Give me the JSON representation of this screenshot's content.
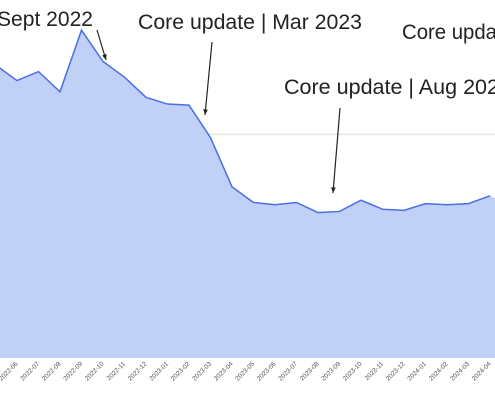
{
  "chart_data": {
    "type": "area",
    "categories": [
      null,
      "2022-06",
      "2022-07",
      "2022-08",
      "2022-09",
      "2022-10",
      "2022-11",
      "2022-12",
      "2023-01",
      "2023-02",
      "2023-03",
      "2023-04",
      "2023-05",
      "2023-06",
      "2023-07",
      "2023-08",
      "2023-09",
      "2023-10",
      "2023-11",
      "2023-12",
      "2024-01",
      "2024-02",
      "2024-03",
      "2024-04"
    ],
    "values": [
      2620,
      2480,
      2560,
      2380,
      2930,
      2650,
      2510,
      2330,
      2270,
      2260,
      1970,
      1530,
      1390,
      1370,
      1390,
      1300,
      1310,
      1410,
      1330,
      1320,
      1380,
      1370,
      1380,
      1450
    ],
    "color": "#4a6fe0",
    "fill": "#c0d0f6",
    "ylim": [
      0,
      3200
    ],
    "gridlines": [
      1000,
      2000
    ],
    "annotations": [
      "Sept 2022",
      "Core update | Mar 2023",
      "Core upda",
      "Core update | Aug 202"
    ]
  }
}
